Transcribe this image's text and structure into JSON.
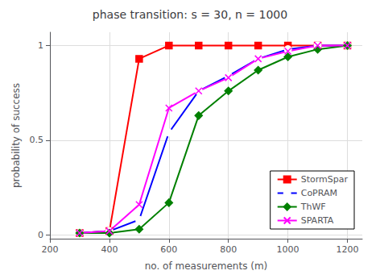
{
  "chart_data": {
    "type": "line",
    "title": "phase transition: s = 30, n = 1000",
    "xlabel": "no. of measurements (m)",
    "ylabel": "probability of success",
    "xlim": [
      200,
      1250
    ],
    "ylim": [
      -0.02,
      1.07
    ],
    "xticks": [
      200,
      400,
      600,
      800,
      1000,
      1200
    ],
    "yticks": [
      0,
      0.5,
      1
    ],
    "grid": true,
    "legend": "lower right",
    "x": [
      300,
      400,
      500,
      600,
      700,
      800,
      900,
      1000,
      1100,
      1200
    ],
    "series": [
      {
        "name": "StormSpar",
        "color": "red",
        "marker": "square",
        "values": [
          0.01,
          0.02,
          0.93,
          1.0,
          1.0,
          1.0,
          1.0,
          1.0,
          1.0,
          1.0
        ]
      },
      {
        "name": "CoPRAM",
        "color": "blue",
        "marker": "circle_open",
        "values": [
          0.01,
          0.02,
          0.08,
          0.54,
          0.76,
          0.84,
          0.93,
          0.98,
          1.0,
          1.0
        ]
      },
      {
        "name": "ThWF",
        "color": "green",
        "marker": "diamond",
        "values": [
          0.01,
          0.01,
          0.03,
          0.17,
          0.63,
          0.76,
          0.87,
          0.94,
          0.98,
          1.0
        ]
      },
      {
        "name": "SPARTA",
        "color": "magenta",
        "marker": "x",
        "values": [
          0.01,
          0.02,
          0.16,
          0.67,
          0.76,
          0.83,
          0.93,
          0.97,
          1.0,
          1.0
        ]
      }
    ]
  }
}
